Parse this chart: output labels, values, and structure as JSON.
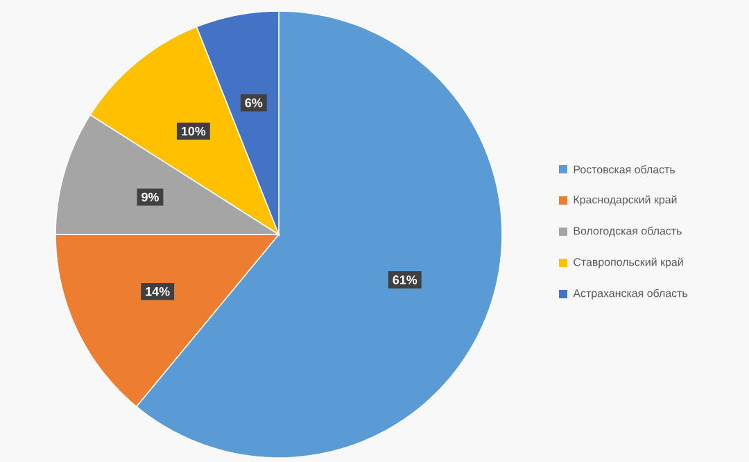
{
  "chart_data": {
    "type": "pie",
    "categories": [
      "Ростовская область",
      "Краснодарский край",
      "Вологодская область",
      "Ставропольский край",
      "Астраханская область"
    ],
    "values": [
      61,
      14,
      9,
      10,
      6
    ],
    "colors": [
      "#5b9bd5",
      "#ed7d31",
      "#a5a5a5",
      "#ffc000",
      "#4472c4"
    ],
    "value_labels": [
      "61%",
      "14%",
      "9%",
      "10%",
      "6%"
    ],
    "legend": "right"
  }
}
